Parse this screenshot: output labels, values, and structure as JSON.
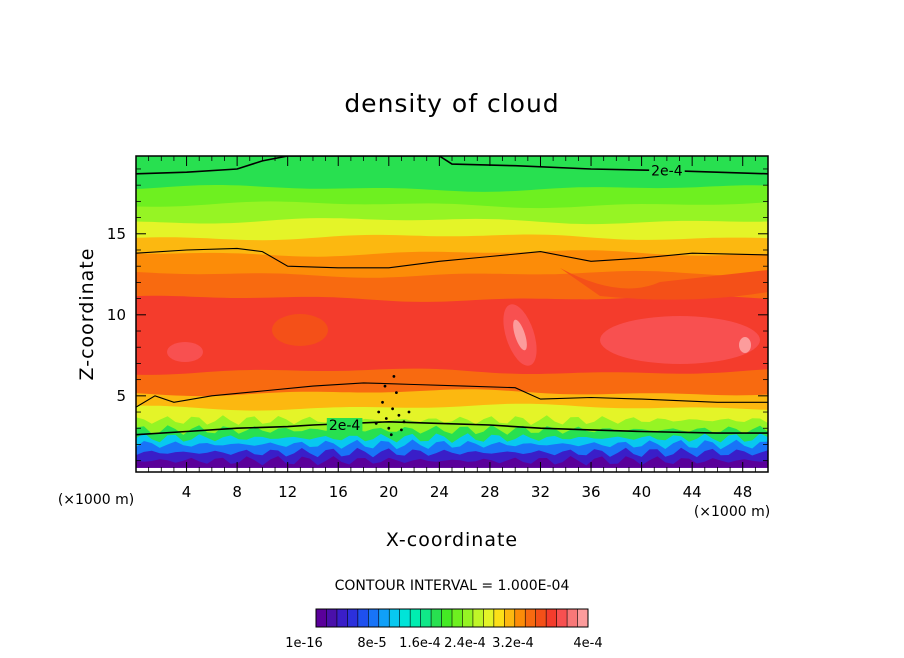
{
  "chart_data": {
    "type": "heatmap",
    "title": "density of cloud",
    "xlabel": "X-coordinate",
    "ylabel": "Z-coordinate",
    "x_unit": "(×1000 m)",
    "y_unit": "(×1000 m)",
    "xlim": [
      0,
      50
    ],
    "ylim": [
      0.3,
      19.8
    ],
    "x_ticks": [
      4,
      8,
      12,
      16,
      20,
      24,
      28,
      32,
      36,
      40,
      44,
      48
    ],
    "y_ticks": [
      5,
      10,
      15
    ],
    "grid": false,
    "contour_interval_label": "CONTOUR INTERVAL = 1.000E-04",
    "contour_labels": [
      {
        "text": "2e-4",
        "x": 42,
        "z": 18.9
      },
      {
        "text": "2e-4",
        "x": 16.5,
        "z": 3.2
      }
    ],
    "colorbar": {
      "colors": [
        "#5a009a",
        "#4a10aa",
        "#3a1ec8",
        "#2c30dc",
        "#1e50ee",
        "#1874f8",
        "#10a0f8",
        "#08c8f0",
        "#00e4d8",
        "#00eeb0",
        "#10e888",
        "#28e050",
        "#44ea24",
        "#6ef020",
        "#96f424",
        "#c0f628",
        "#e4f428",
        "#fce018",
        "#fcb810",
        "#fc8c08",
        "#f86a10",
        "#f45018",
        "#f43c2c",
        "#f85050",
        "#f87878",
        "#fc9c9c"
      ],
      "tick_labels": [
        "1e-16",
        "8e-5",
        "1.6e-4",
        "2.4e-4",
        "3.2e-4",
        "4e-4"
      ]
    },
    "field_levels_z": [
      {
        "z": 1.0,
        "value": 2e-05,
        "color": "#5a009a"
      },
      {
        "z": 1.5,
        "value": 4e-05,
        "color": "#3a1ec8"
      },
      {
        "z": 2.0,
        "value": 6e-05,
        "color": "#1874f8"
      },
      {
        "z": 2.4,
        "value": 8e-05,
        "color": "#08c8f0"
      },
      {
        "z": 2.9,
        "value": 0.00012,
        "color": "#28e050"
      },
      {
        "z": 3.5,
        "value": 0.00016,
        "color": "#96f424"
      },
      {
        "z": 4.3,
        "value": 0.0002,
        "color": "#e4f428"
      },
      {
        "z": 5.2,
        "value": 0.00024,
        "color": "#fcb810"
      },
      {
        "z": 6.5,
        "value": 0.00028,
        "color": "#f86a10"
      },
      {
        "z": 8.5,
        "value": 0.00032,
        "color": "#f43c2c"
      },
      {
        "z": 11.0,
        "value": 0.00032,
        "color": "#f43c2c"
      },
      {
        "z": 12.5,
        "value": 0.00028,
        "color": "#f86a10"
      },
      {
        "z": 13.8,
        "value": 0.00024,
        "color": "#fc8c08"
      },
      {
        "z": 14.8,
        "value": 0.0002,
        "color": "#fcb810"
      },
      {
        "z": 15.8,
        "value": 0.00016,
        "color": "#e4f428"
      },
      {
        "z": 16.8,
        "value": 0.00014,
        "color": "#96f424"
      },
      {
        "z": 17.8,
        "value": 0.00012,
        "color": "#6ef020"
      },
      {
        "z": 19.8,
        "value": 0.0001,
        "color": "#28e050"
      }
    ],
    "contour_lines": [
      {
        "name": "upper-2e-4",
        "points": [
          [
            0,
            18.7
          ],
          [
            4,
            18.8
          ],
          [
            8,
            19.0
          ],
          [
            10,
            19.5
          ],
          [
            12,
            19.8
          ],
          [
            24,
            19.8
          ],
          [
            25,
            19.3
          ],
          [
            30,
            19.2
          ],
          [
            36,
            19.0
          ],
          [
            42,
            18.9
          ],
          [
            50,
            18.7
          ]
        ]
      },
      {
        "name": "upper-mid",
        "points": [
          [
            0,
            13.8
          ],
          [
            4,
            14.0
          ],
          [
            8,
            14.1
          ],
          [
            10,
            13.9
          ],
          [
            12,
            13.0
          ],
          [
            16,
            12.9
          ],
          [
            20,
            12.9
          ],
          [
            24,
            13.3
          ],
          [
            28,
            13.6
          ],
          [
            32,
            13.9
          ],
          [
            36,
            13.3
          ],
          [
            40,
            13.5
          ],
          [
            44,
            13.8
          ],
          [
            50,
            13.7
          ]
        ]
      },
      {
        "name": "lower-mid",
        "points": [
          [
            0,
            4.3
          ],
          [
            1.5,
            5.0
          ],
          [
            3,
            4.6
          ],
          [
            6,
            5.0
          ],
          [
            10,
            5.3
          ],
          [
            14,
            5.6
          ],
          [
            18,
            5.8
          ],
          [
            22,
            5.7
          ],
          [
            26,
            5.6
          ],
          [
            30,
            5.5
          ],
          [
            32,
            4.8
          ],
          [
            36,
            4.9
          ],
          [
            40,
            4.8
          ],
          [
            46,
            4.6
          ],
          [
            50,
            4.6
          ]
        ]
      },
      {
        "name": "lower-2e-4",
        "points": [
          [
            0,
            2.6
          ],
          [
            4,
            2.8
          ],
          [
            8,
            3.0
          ],
          [
            12,
            3.1
          ],
          [
            14,
            3.2
          ],
          [
            20,
            3.4
          ],
          [
            24,
            3.3
          ],
          [
            28,
            3.2
          ],
          [
            32,
            3.0
          ],
          [
            36,
            2.9
          ],
          [
            40,
            2.8
          ],
          [
            46,
            2.7
          ],
          [
            50,
            2.7
          ]
        ]
      }
    ]
  }
}
